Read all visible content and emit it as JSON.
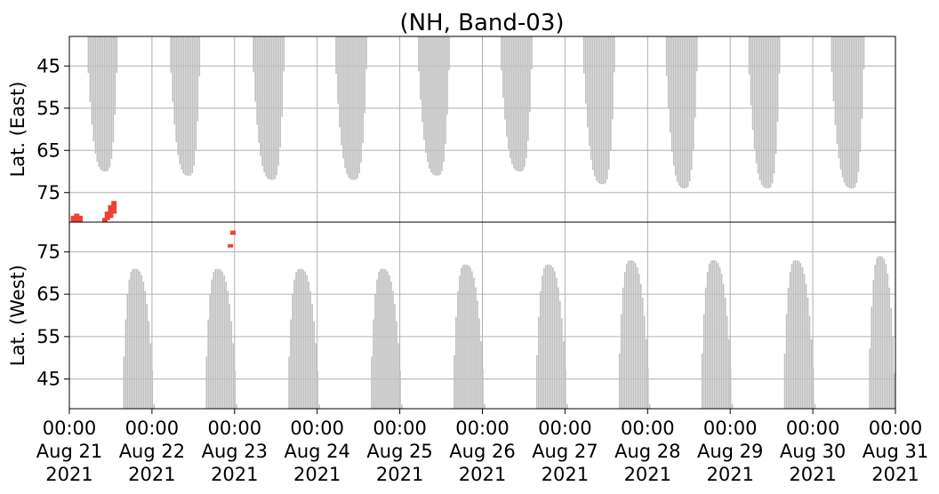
{
  "chart_data": {
    "type": "heatmap",
    "title": "(NH, Band-03)",
    "grid": true,
    "x_range": [
      "2021-08-21 00:00",
      "2021-08-31 00:00"
    ],
    "x_ticks": [
      {
        "t": 0,
        "line1": "00:00",
        "line2": "Aug 21",
        "line3": "2021"
      },
      {
        "t": 1,
        "line1": "00:00",
        "line2": "Aug 22",
        "line3": "2021"
      },
      {
        "t": 2,
        "line1": "00:00",
        "line2": "Aug 23",
        "line3": "2021"
      },
      {
        "t": 3,
        "line1": "00:00",
        "line2": "Aug 24",
        "line3": "2021"
      },
      {
        "t": 4,
        "line1": "00:00",
        "line2": "Aug 25",
        "line3": "2021"
      },
      {
        "t": 5,
        "line1": "00:00",
        "line2": "Aug 26",
        "line3": "2021"
      },
      {
        "t": 6,
        "line1": "00:00",
        "line2": "Aug 27",
        "line3": "2021"
      },
      {
        "t": 7,
        "line1": "00:00",
        "line2": "Aug 28",
        "line3": "2021"
      },
      {
        "t": 8,
        "line1": "00:00",
        "line2": "Aug 29",
        "line3": "2021"
      },
      {
        "t": 9,
        "line1": "00:00",
        "line2": "Aug 30",
        "line3": "2021"
      },
      {
        "t": 10,
        "line1": "00:00",
        "line2": "Aug 31",
        "line3": "2021"
      }
    ],
    "panels": [
      {
        "name": "east",
        "ylabel": "Lat. (East)",
        "ylim": [
          38,
          82
        ],
        "y_ticks": [
          45,
          55,
          65,
          75
        ],
        "no_data_color": "#c0c0c0",
        "event_color": "#f04030",
        "no_data_regions": [
          {
            "t_start": 0.2,
            "t_end": 0.58,
            "lat_min": 70,
            "t_min": 0.43
          },
          {
            "t_start": 1.2,
            "t_end": 1.58,
            "lat_min": 71,
            "t_min": 1.44
          },
          {
            "t_start": 2.2,
            "t_end": 2.6,
            "lat_min": 72,
            "t_min": 2.45
          },
          {
            "t_start": 3.2,
            "t_end": 3.6,
            "lat_min": 72,
            "t_min": 3.44
          },
          {
            "t_start": 4.2,
            "t_end": 4.6,
            "lat_min": 71,
            "t_min": 4.45
          },
          {
            "t_start": 5.2,
            "t_end": 5.6,
            "lat_min": 70,
            "t_min": 5.45
          },
          {
            "t_start": 6.2,
            "t_end": 6.6,
            "lat_min": 73,
            "t_min": 6.45
          },
          {
            "t_start": 7.2,
            "t_end": 7.6,
            "lat_min": 74,
            "t_min": 7.44
          },
          {
            "t_start": 8.2,
            "t_end": 8.6,
            "lat_min": 74,
            "t_min": 8.45
          },
          {
            "t_start": 9.2,
            "t_end": 9.62,
            "lat_min": 74,
            "t_min": 9.47
          }
        ],
        "events": [
          {
            "t": 0.05,
            "lat_min": 80.5,
            "lat_max": 82
          },
          {
            "t": 0.09,
            "lat_min": 80,
            "lat_max": 82
          },
          {
            "t": 0.13,
            "lat_min": 80.5,
            "lat_max": 82
          },
          {
            "t": 0.43,
            "lat_min": 81,
            "lat_max": 82
          },
          {
            "t": 0.46,
            "lat_min": 79.5,
            "lat_max": 81.5
          },
          {
            "t": 0.5,
            "lat_min": 78,
            "lat_max": 81
          },
          {
            "t": 0.54,
            "lat_min": 77,
            "lat_max": 80
          }
        ]
      },
      {
        "name": "west",
        "ylabel": "Lat. (West)",
        "ylim": [
          38,
          82
        ],
        "y_ticks": [
          45,
          55,
          65,
          75
        ],
        "no_data_color": "#c0c0c0",
        "event_color": "#f04030",
        "no_data_regions": [
          {
            "t_start": 0.63,
            "t_end": 1.02,
            "lat_max": 71,
            "t_peak": 0.78
          },
          {
            "t_start": 1.63,
            "t_end": 2.02,
            "lat_max": 71,
            "t_peak": 1.78
          },
          {
            "t_start": 2.63,
            "t_end": 3.02,
            "lat_max": 71,
            "t_peak": 2.78
          },
          {
            "t_start": 3.63,
            "t_end": 4.02,
            "lat_max": 71,
            "t_peak": 3.78
          },
          {
            "t_start": 4.63,
            "t_end": 5.02,
            "lat_max": 72,
            "t_peak": 4.78
          },
          {
            "t_start": 5.63,
            "t_end": 6.02,
            "lat_max": 72,
            "t_peak": 5.78
          },
          {
            "t_start": 6.63,
            "t_end": 7.02,
            "lat_max": 73,
            "t_peak": 6.78
          },
          {
            "t_start": 7.63,
            "t_end": 8.02,
            "lat_max": 73,
            "t_peak": 7.78
          },
          {
            "t_start": 8.63,
            "t_end": 9.02,
            "lat_max": 73,
            "t_peak": 8.78
          },
          {
            "t_start": 9.66,
            "t_end": 10.0,
            "lat_max": 74,
            "t_peak": 9.8
          }
        ],
        "events": [
          {
            "t": 1.95,
            "lat_min": 76,
            "lat_max": 76.8
          },
          {
            "t": 1.98,
            "lat_min": 79,
            "lat_max": 80
          }
        ]
      }
    ]
  }
}
